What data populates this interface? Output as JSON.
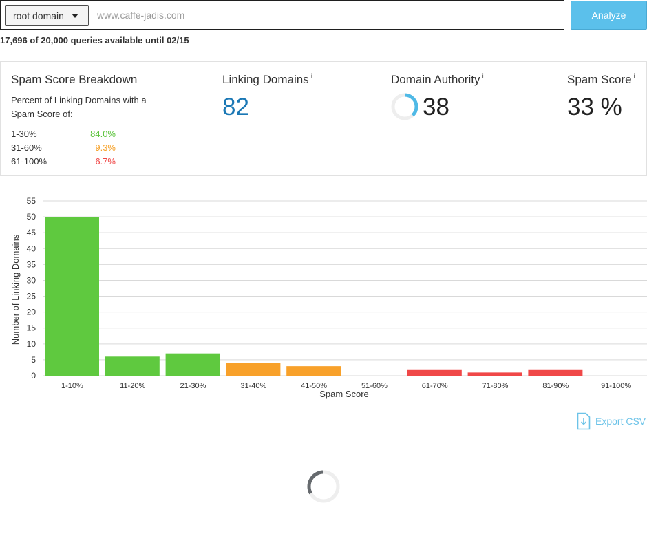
{
  "search": {
    "scope_selected": "root domain",
    "url_placeholder": "www.caffe-jadis.com",
    "url_value": "",
    "analyze_label": "Analyze"
  },
  "quota_text": "17,696 of 20,000 queries available until 02/15",
  "breakdown": {
    "title": "Spam Score Breakdown",
    "description": "Percent of Linking Domains with a Spam Score of:",
    "rows": [
      {
        "range": "1-30%",
        "pct": "84.0%",
        "color": "#5cc43d"
      },
      {
        "range": "31-60%",
        "pct": "9.3%",
        "color": "#f6a128"
      },
      {
        "range": "61-100%",
        "pct": "6.7%",
        "color": "#ef4444"
      }
    ]
  },
  "linking_domains": {
    "title": "Linking Domains",
    "info": "i",
    "value": "82",
    "color": "#1b78b5"
  },
  "domain_authority": {
    "title": "Domain Authority",
    "info": "i",
    "value": "38",
    "progress": 0.38,
    "ring_color": "#4fb9e6",
    "track_color": "#eeeeee"
  },
  "spam_score": {
    "title": "Spam Score",
    "info": "i",
    "value": "33 %"
  },
  "chart_data": {
    "type": "bar",
    "categories": [
      "1-10%",
      "11-20%",
      "21-30%",
      "31-40%",
      "41-50%",
      "51-60%",
      "61-70%",
      "71-80%",
      "81-90%",
      "91-100%"
    ],
    "values": [
      50,
      6,
      7,
      4,
      3,
      0,
      2,
      1,
      2,
      0
    ],
    "colors": [
      "#5fc93f",
      "#5fc93f",
      "#5fc93f",
      "#f8a12a",
      "#f8a12a",
      "#f8a12a",
      "#f04848",
      "#f04848",
      "#f04848",
      "#f04848"
    ],
    "xlabel": "Spam Score",
    "ylabel": "Number of Linking Domains",
    "ylim": [
      0,
      55
    ],
    "yticks": [
      0,
      5,
      10,
      15,
      20,
      25,
      30,
      35,
      40,
      45,
      50,
      55
    ],
    "grid": true,
    "legend": "none"
  },
  "export_label": "Export CSV",
  "icons": {
    "export": "csv-file-download-icon",
    "loader": "loading-spinner-icon",
    "caret": "caret-down-icon"
  }
}
